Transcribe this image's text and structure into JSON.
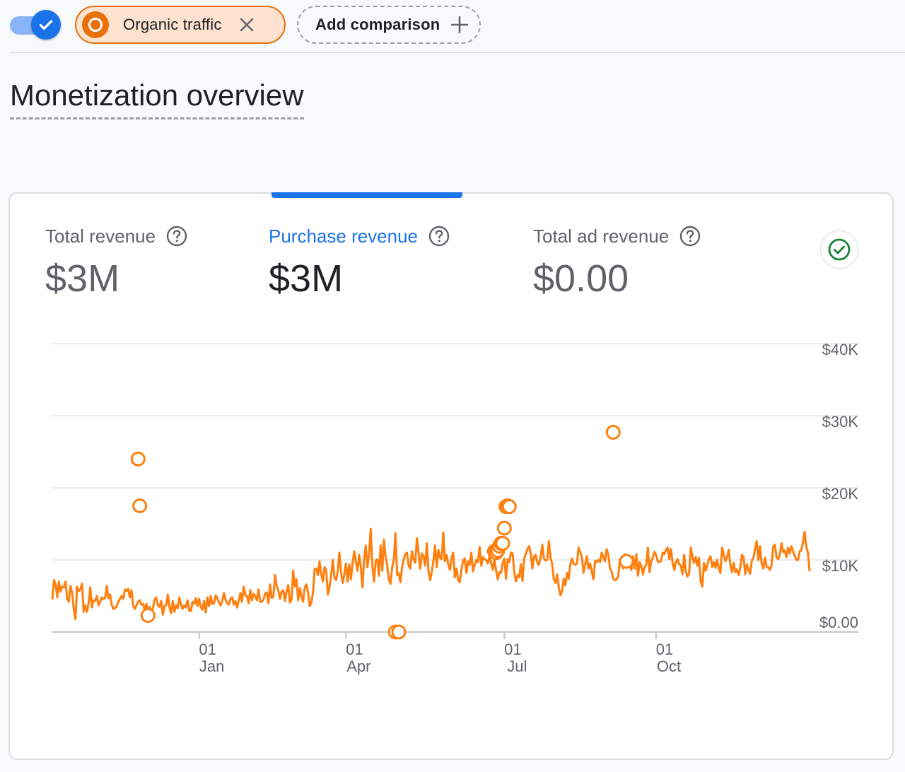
{
  "comparison_bar": {
    "toggle": {
      "checked": true
    },
    "segments": [
      {
        "label": "Organic traffic",
        "color": "#e8710a"
      }
    ],
    "add_label": "Add comparison"
  },
  "page": {
    "title": "Monetization overview"
  },
  "metrics": [
    {
      "label": "Total revenue",
      "value": "$3M",
      "active": false
    },
    {
      "label": "Purchase revenue",
      "value": "$3M",
      "active": true
    },
    {
      "label": "Total ad revenue",
      "value": "$0.00",
      "active": false
    }
  ],
  "colors": {
    "accent": "#1a73e8",
    "series": "#ff7f0e",
    "ok": "#188038"
  },
  "chart_data": {
    "type": "line",
    "x_ticks": [
      {
        "day": "01",
        "month": "Jan"
      },
      {
        "day": "01",
        "month": "Apr"
      },
      {
        "day": "01",
        "month": "Jul"
      },
      {
        "day": "01",
        "month": "Oct"
      }
    ],
    "y_ticks": [
      "$0.00",
      "$10K",
      "$20K",
      "$30K",
      "$40K"
    ],
    "ylim": [
      0,
      40000
    ],
    "y_axis_side": "right",
    "grid": true,
    "series": [
      {
        "values": [
          4500,
          7200,
          6600,
          4800,
          7000,
          5600,
          6300,
          6200,
          7000,
          4600,
          4200,
          6400,
          5400,
          3200,
          1800,
          6300,
          5700,
          5900,
          6700,
          2800,
          3700,
          2800,
          4000,
          6200,
          3400,
          4400,
          4300,
          5000,
          3700,
          4200,
          4800,
          4600,
          4700,
          6400,
          4700,
          5200,
          3800,
          3200,
          3300,
          3600,
          4200,
          4600,
          5000,
          4600,
          5900,
          5700,
          6000,
          4800,
          5800,
          3700,
          3200,
          3700,
          4200,
          4400,
          3800,
          3900,
          3100,
          3900,
          2900,
          3500,
          2600,
          3300,
          4500,
          4800,
          3700,
          3500,
          4300,
          2400,
          3600,
          3700,
          5200,
          3400,
          2600,
          4300,
          2800,
          3700,
          3300,
          4800,
          3800,
          3200,
          3700,
          3400,
          4400,
          3000,
          2900,
          4200,
          3900,
          4700,
          3600,
          4600,
          3400,
          3100,
          4300,
          2700,
          4800,
          3600,
          5000,
          3900,
          4000,
          5100,
          4700,
          4100,
          3700,
          4300,
          5400,
          4500,
          4000,
          3800,
          4600,
          4800,
          3800,
          4300,
          3400,
          4300,
          5400,
          4200,
          6300,
          5100,
          5000,
          4000,
          5800,
          4400,
          5300,
          5000,
          4400,
          5900,
          4200,
          4200,
          4500,
          5300,
          5500,
          4000,
          6600,
          4700,
          5000,
          7900,
          6400,
          5700,
          4600,
          5600,
          5800,
          4300,
          5600,
          6500,
          4100,
          4500,
          8500,
          6300,
          7300,
          4400,
          6100,
          5000,
          4200,
          6200,
          6600,
          5500,
          3600,
          4000,
          5500,
          8700,
          8800,
          7900,
          9800,
          8000,
          7000,
          9000,
          8600,
          5200,
          6200,
          7800,
          10000,
          7600,
          7200,
          8400,
          11000,
          8300,
          6800,
          8000,
          9500,
          7000,
          9400,
          7300,
          9600,
          11200,
          9800,
          8500,
          10700,
          9000,
          6200,
          10100,
          12000,
          9000,
          10800,
          14300,
          9100,
          7000,
          9900,
          10100,
          7800,
          12000,
          8500,
          12800,
          10500,
          9200,
          7200,
          6700,
          9000,
          10000,
          13700,
          7900,
          8200,
          6900,
          9000,
          10000,
          10800,
          11000,
          9200,
          8800,
          11200,
          10100,
          9600,
          13000,
          11000,
          8800,
          10900,
          10500,
          9200,
          12300,
          8500,
          7200,
          8300,
          9900,
          12000,
          9000,
          11400,
          10300,
          10100,
          13800,
          9800,
          10700,
          9400,
          8600,
          10300,
          11000,
          7600,
          8800,
          7200,
          6900,
          8700,
          9900,
          10200,
          8200,
          9800,
          9300,
          11000,
          8400,
          9300,
          10000,
          9700,
          11800,
          9200,
          10400,
          10100,
          10000,
          9500,
          10500,
          9600,
          8600,
          10100,
          8500,
          7300,
          8300,
          8200,
          9600,
          10200,
          7400,
          10100,
          9700,
          11000,
          10900,
          8300,
          7000,
          7900,
          7600,
          9400,
          7100,
          10200,
          10800,
          11500,
          11900,
          10800,
          8800,
          10500,
          10700,
          9600,
          9300,
          10500,
          12100,
          10200,
          9900,
          10000,
          12600,
          10300,
          9400,
          7300,
          6800,
          8000,
          6200,
          5100,
          5700,
          7400,
          6500,
          8200,
          7400,
          9400,
          10200,
          9500,
          9300,
          9500,
          11700,
          11100,
          10400,
          8200,
          9400,
          10500,
          8800,
          9500,
          8400,
          7300,
          9900,
          9700,
          10000,
          9700,
          11000,
          10400,
          9800,
          11500,
          10800,
          8800,
          8400,
          7400,
          7200,
          7300,
          7700,
          10000,
          10300,
          8800,
          10800,
          9500,
          10300,
          9200,
          8600,
          10500,
          8800,
          10800,
          7800,
          9700,
          9200,
          8000,
          9000,
          9300,
          11700,
          8300,
          9800,
          10300,
          11100,
          10700,
          9800,
          9700,
          9900,
          11000,
          10800,
          11400,
          11700,
          10100,
          11500,
          9600,
          8600,
          9700,
          10100,
          9400,
          9200,
          8000,
          10700,
          8400,
          7700,
          8100,
          11700,
          10500,
          9600,
          10400,
          9200,
          10300,
          7000,
          6300,
          9600,
          8500,
          9200,
          10200,
          10500,
          9000,
          9700,
          8900,
          10000,
          8900,
          8200,
          11700,
          10700,
          9800,
          10400,
          11400,
          9300,
          8300,
          9600,
          8300,
          8700,
          7900,
          8900,
          10700,
          10400,
          8000,
          9400,
          8600,
          8100,
          9900,
          10300,
          11600,
          12600,
          10000,
          11900,
          9500,
          8800,
          10300,
          9000,
          9000,
          8600,
          9300,
          11900,
          12100,
          10400,
          10100,
          10700,
          12300,
          11100,
          11300,
          10400,
          11700,
          10900,
          11900,
          11200,
          10600,
          10000,
          10000,
          11200,
          11300,
          12500,
          13900,
          11900,
          11000,
          8400
        ],
        "markers": [
          {
            "index": 52,
            "value": 24000
          },
          {
            "index": 53,
            "value": 17500
          },
          {
            "index": 58,
            "value": 2300
          },
          {
            "index": 208,
            "value": 0
          },
          {
            "index": 210,
            "value": 0
          },
          {
            "index": 268,
            "value": 11200
          },
          {
            "index": 269,
            "value": 11000
          },
          {
            "index": 270,
            "value": 11300
          },
          {
            "index": 271,
            "value": 11900
          },
          {
            "index": 272,
            "value": 12300
          },
          {
            "index": 273,
            "value": 12300
          },
          {
            "index": 274,
            "value": 14400
          },
          {
            "index": 275,
            "value": 17400
          },
          {
            "index": 276,
            "value": 17500
          },
          {
            "index": 277,
            "value": 17400
          },
          {
            "index": 340,
            "value": 27700
          },
          {
            "index": 348,
            "value": 9800
          }
        ]
      }
    ]
  }
}
